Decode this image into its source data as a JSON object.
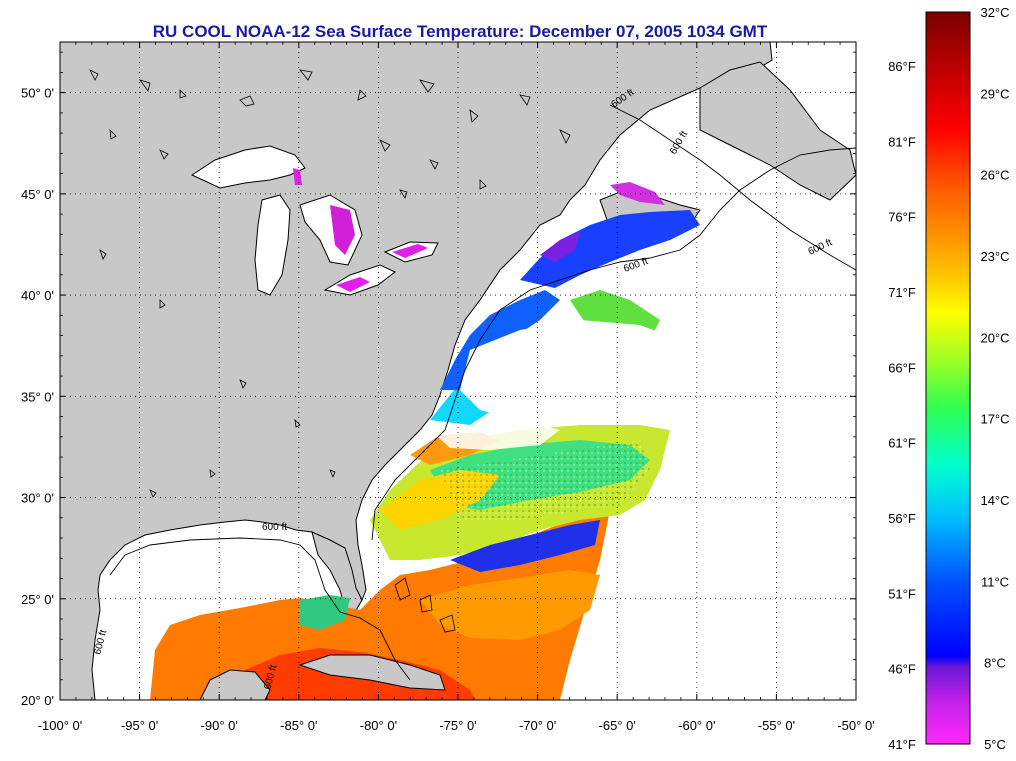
{
  "title": "RU COOL  NOAA-12  Sea Surface Temperature:  December 07, 2005 1034 GMT",
  "map": {
    "lon_range": [
      -100,
      -50
    ],
    "lat_range": [
      20,
      52.5
    ],
    "lat_ticks": [
      {
        "value": 50,
        "label": "50° 0'"
      },
      {
        "value": 45,
        "label": "45° 0'"
      },
      {
        "value": 40,
        "label": "40° 0'"
      },
      {
        "value": 35,
        "label": "35° 0'"
      },
      {
        "value": 30,
        "label": "30° 0'"
      },
      {
        "value": 25,
        "label": "25° 0'"
      },
      {
        "value": 20,
        "label": "20° 0'"
      }
    ],
    "lon_ticks": [
      {
        "value": -100,
        "label": "-100° 0'"
      },
      {
        "value": -95,
        "label": "-95° 0'"
      },
      {
        "value": -90,
        "label": "-90° 0'"
      },
      {
        "value": -85,
        "label": "-85° 0'"
      },
      {
        "value": -80,
        "label": "-80° 0'"
      },
      {
        "value": -75,
        "label": "-75° 0'"
      },
      {
        "value": -70,
        "label": "-70° 0'"
      },
      {
        "value": -65,
        "label": "-65° 0'"
      },
      {
        "value": -60,
        "label": "-60° 0'"
      },
      {
        "value": -55,
        "label": "-55° 0'"
      },
      {
        "value": -50,
        "label": "-50° 0'"
      }
    ],
    "contour_label": "600 ft",
    "land_color": "#c8c8c8",
    "no_data_color": "#ffffff"
  },
  "colorbar": {
    "celsius": [
      "32°C",
      "29°C",
      "26°C",
      "23°C",
      "20°C",
      "17°C",
      "14°C",
      "11°C",
      "8°C",
      "5°C"
    ],
    "fahrenheit": [
      "86°F",
      "81°F",
      "76°F",
      "71°F",
      "66°F",
      "61°F",
      "56°F",
      "51°F",
      "46°F",
      "41°F"
    ],
    "colors": [
      "#7a0000",
      "#c00000",
      "#ff0000",
      "#ff6000",
      "#ffa000",
      "#ffd800",
      "#ffff00",
      "#a0ff20",
      "#20ff60",
      "#00ffd0",
      "#00c8ff",
      "#0064ff",
      "#0000ff",
      "#7010d0",
      "#c020e0",
      "#ff20ff"
    ]
  }
}
